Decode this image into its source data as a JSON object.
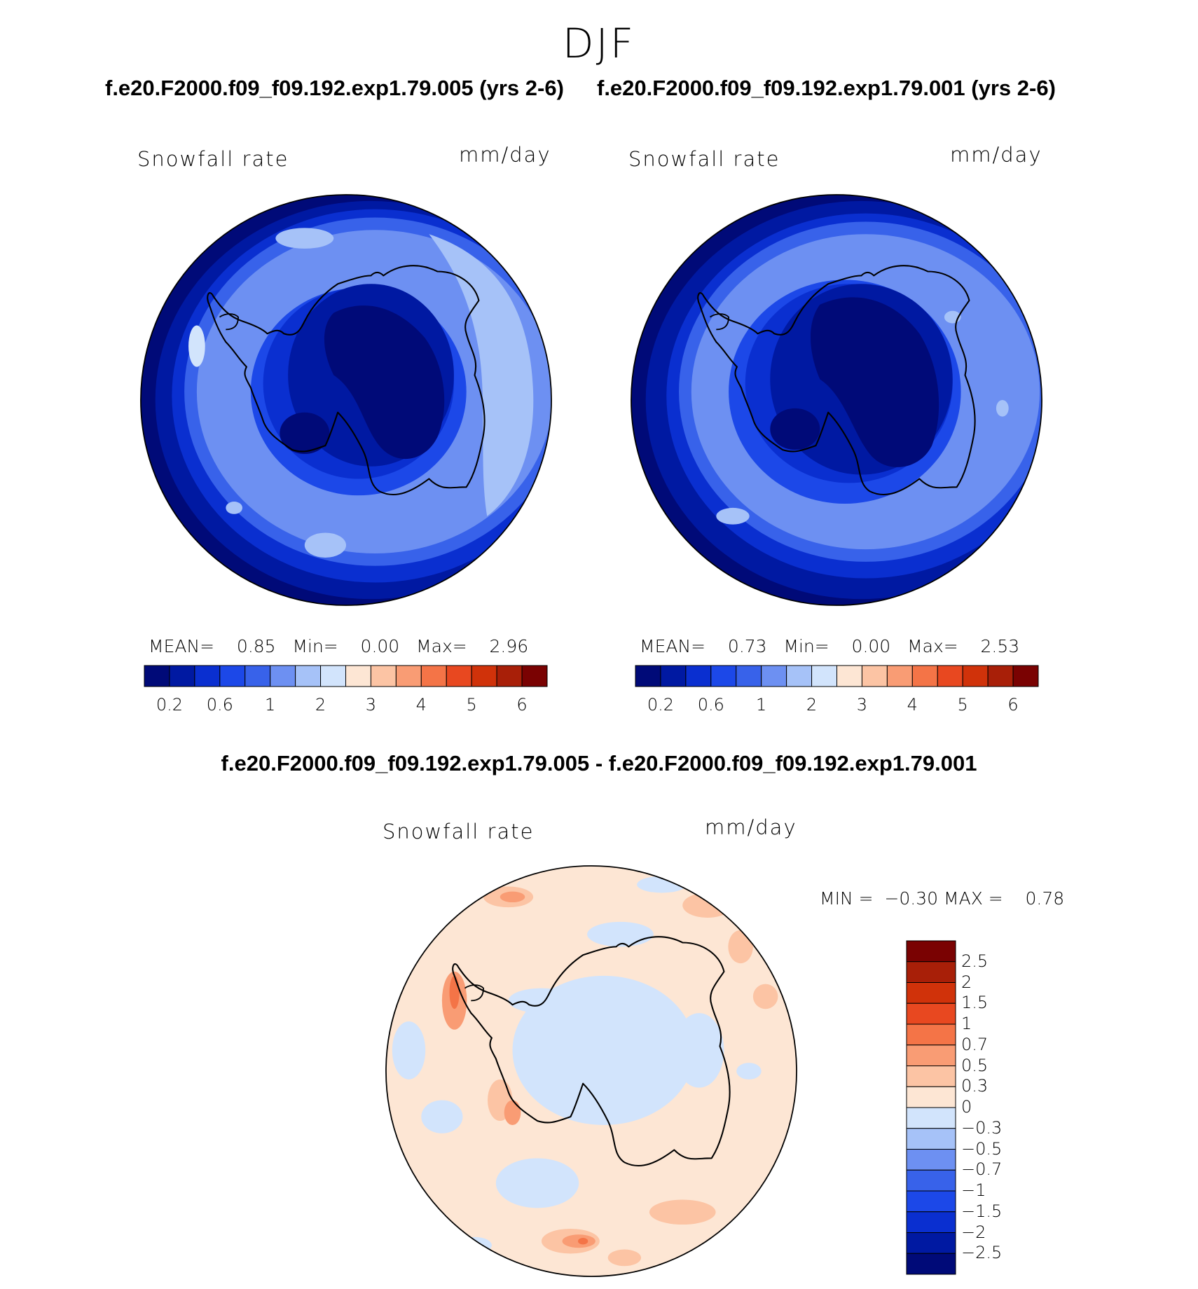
{
  "page": {
    "season": "DJF",
    "diff_title": "f.e20.F2000.f09_f09.192.exp1.79.005 - f.e20.F2000.f09_f09.192.exp1.79.001"
  },
  "panels": [
    {
      "case_title": "f.e20.F2000.f09_f09.192.exp1.79.005 (yrs 2-6)",
      "variable": "Snowfall rate",
      "units": "mm/day",
      "stats": {
        "mean_label": "MEAN=",
        "mean": "0.85",
        "min_label": "Min=",
        "min": "0.00",
        "max_label": "Max=",
        "max": "2.96"
      }
    },
    {
      "case_title": "f.e20.F2000.f09_f09.192.exp1.79.001 (yrs 2-6)",
      "variable": "Snowfall rate",
      "units": "mm/day",
      "stats": {
        "mean_label": "MEAN=",
        "mean": "0.73",
        "min_label": "Min=",
        "min": "0.00",
        "max_label": "Max=",
        "max": "2.53"
      }
    },
    {
      "variable": "Snowfall rate",
      "units": "mm/day",
      "stats": {
        "min_label": "MIN =",
        "min": "−0.30",
        "max_label": "MAX =",
        "max": "0.78"
      }
    }
  ],
  "abs_colorbar": {
    "levels": [
      "0.2",
      "0.6",
      "1",
      "2",
      "3",
      "4",
      "5",
      "6"
    ],
    "colors": [
      "#000a78",
      "#0019a2",
      "#0a2fd0",
      "#1c48e8",
      "#3862ea",
      "#6d90f2",
      "#a6c2f8",
      "#d2e4fc",
      "#fde6d4",
      "#fcc4a4",
      "#f99c74",
      "#f47447",
      "#e84820",
      "#d0320a",
      "#a81f08",
      "#7a0202"
    ]
  },
  "diff_colorbar": {
    "levels": [
      "2.5",
      "2",
      "1.5",
      "1",
      "0.7",
      "0.5",
      "0.3",
      "0",
      "−0.3",
      "−0.5",
      "−0.7",
      "−1",
      "−1.5",
      "−2",
      "−2.5"
    ],
    "colors": [
      "#7a0202",
      "#a81f08",
      "#d0320a",
      "#e84820",
      "#f47447",
      "#f99c74",
      "#fcc4a4",
      "#fde6d4",
      "#d2e4fc",
      "#a6c2f8",
      "#6d90f2",
      "#3862ea",
      "#1c48e8",
      "#0a2fd0",
      "#0019a2",
      "#000a78"
    ]
  },
  "chart_data": [
    {
      "type": "heatmap",
      "title": "f.e20.F2000.f09_f09.192.exp1.79.005 (yrs 2-6)",
      "subtitle": "Snowfall rate",
      "units": "mm/day",
      "projection": "south polar stereographic",
      "colorbar_levels": [
        0.2,
        0.4,
        0.6,
        0.8,
        1,
        1.5,
        2,
        2.5,
        3,
        3.5,
        4,
        4.5,
        5,
        5.5,
        6
      ],
      "colorbar_tick_labels": [
        "0.2",
        "0.6",
        "1",
        "2",
        "3",
        "4",
        "5",
        "6"
      ],
      "mean": 0.85,
      "min": 0.0,
      "max": 2.96
    },
    {
      "type": "heatmap",
      "title": "f.e20.F2000.f09_f09.192.exp1.79.001 (yrs 2-6)",
      "subtitle": "Snowfall rate",
      "units": "mm/day",
      "projection": "south polar stereographic",
      "colorbar_levels": [
        0.2,
        0.4,
        0.6,
        0.8,
        1,
        1.5,
        2,
        2.5,
        3,
        3.5,
        4,
        4.5,
        5,
        5.5,
        6
      ],
      "colorbar_tick_labels": [
        "0.2",
        "0.6",
        "1",
        "2",
        "3",
        "4",
        "5",
        "6"
      ],
      "mean": 0.73,
      "min": 0.0,
      "max": 2.53
    },
    {
      "type": "heatmap",
      "title": "f.e20.F2000.f09_f09.192.exp1.79.005 - f.e20.F2000.f09_f09.192.exp1.79.001",
      "subtitle": "Snowfall rate",
      "units": "mm/day",
      "projection": "south polar stereographic",
      "colorbar_levels": [
        -2.5,
        -2,
        -1.5,
        -1,
        -0.7,
        -0.5,
        -0.3,
        0,
        0.3,
        0.5,
        0.7,
        1,
        1.5,
        2,
        2.5
      ],
      "min": -0.3,
      "max": 0.78
    }
  ]
}
